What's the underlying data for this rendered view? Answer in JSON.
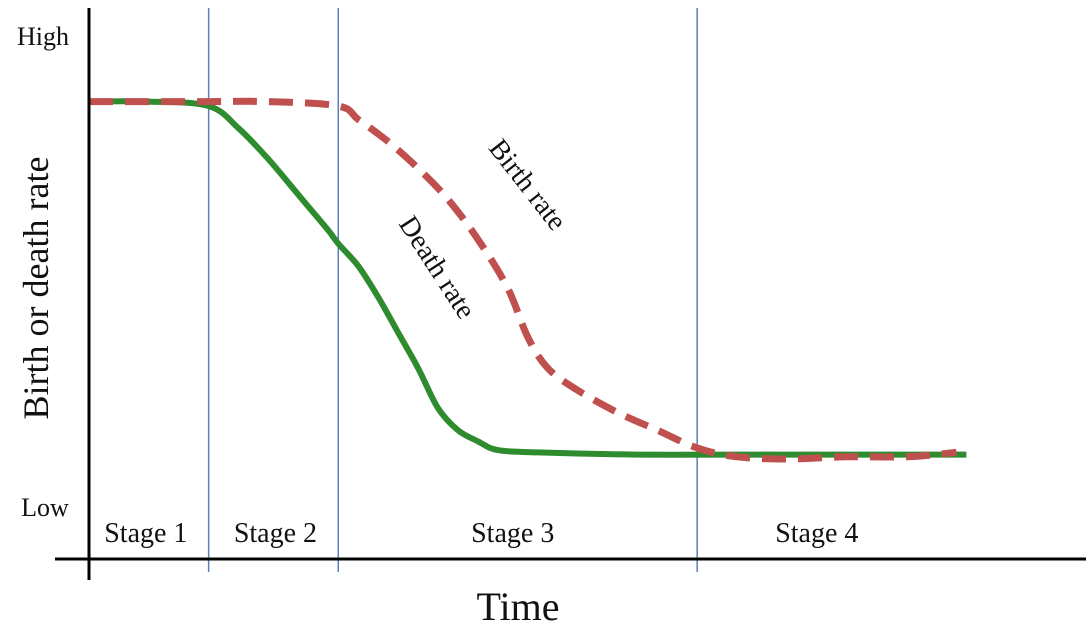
{
  "chart_data": {
    "type": "line",
    "xlabel": "Time",
    "ylabel": "Birth or death rate",
    "y_tick_labels": {
      "high": "High",
      "low": "Low"
    },
    "ylim": [
      0,
      1
    ],
    "xlim": [
      0,
      1
    ],
    "grid": false,
    "legend": "none",
    "stage_boundaries": [
      0.12,
      0.25,
      0.61
    ],
    "stages": [
      {
        "label": "Stage 1",
        "x_center": 0.057
      },
      {
        "label": "Stage 2",
        "x_center": 0.187
      },
      {
        "label": "Stage 3",
        "x_center": 0.425
      },
      {
        "label": "Stage 4",
        "x_center": 0.73
      }
    ],
    "series": [
      {
        "name": "Birth rate",
        "color": "#c0504d",
        "style": "dashed",
        "label_at": {
          "x": 0.4,
          "y": 0.745
        },
        "label_angle": 52,
        "points": [
          [
            0.0,
            0.85
          ],
          [
            0.06,
            0.85
          ],
          [
            0.12,
            0.85
          ],
          [
            0.18,
            0.85
          ],
          [
            0.25,
            0.84
          ],
          [
            0.27,
            0.81
          ],
          [
            0.3,
            0.76
          ],
          [
            0.33,
            0.7
          ],
          [
            0.36,
            0.63
          ],
          [
            0.39,
            0.54
          ],
          [
            0.42,
            0.43
          ],
          [
            0.44,
            0.32
          ],
          [
            0.46,
            0.25
          ],
          [
            0.49,
            0.2
          ],
          [
            0.53,
            0.15
          ],
          [
            0.57,
            0.11
          ],
          [
            0.61,
            0.07
          ],
          [
            0.65,
            0.05
          ],
          [
            0.7,
            0.045
          ],
          [
            0.76,
            0.05
          ],
          [
            0.82,
            0.05
          ],
          [
            0.87,
            0.06
          ]
        ]
      },
      {
        "name": "Death rate",
        "color": "#2e8b2e",
        "style": "solid",
        "label_at": {
          "x": 0.31,
          "y": 0.575
        },
        "label_angle": 57,
        "points": [
          [
            0.0,
            0.85
          ],
          [
            0.06,
            0.85
          ],
          [
            0.12,
            0.84
          ],
          [
            0.15,
            0.79
          ],
          [
            0.18,
            0.72
          ],
          [
            0.21,
            0.64
          ],
          [
            0.24,
            0.56
          ],
          [
            0.25,
            0.53
          ],
          [
            0.27,
            0.48
          ],
          [
            0.29,
            0.41
          ],
          [
            0.31,
            0.33
          ],
          [
            0.33,
            0.25
          ],
          [
            0.35,
            0.16
          ],
          [
            0.37,
            0.11
          ],
          [
            0.39,
            0.085
          ],
          [
            0.41,
            0.065
          ],
          [
            0.45,
            0.06
          ],
          [
            0.55,
            0.055
          ],
          [
            0.65,
            0.055
          ],
          [
            0.76,
            0.055
          ],
          [
            0.88,
            0.055
          ]
        ]
      }
    ]
  }
}
